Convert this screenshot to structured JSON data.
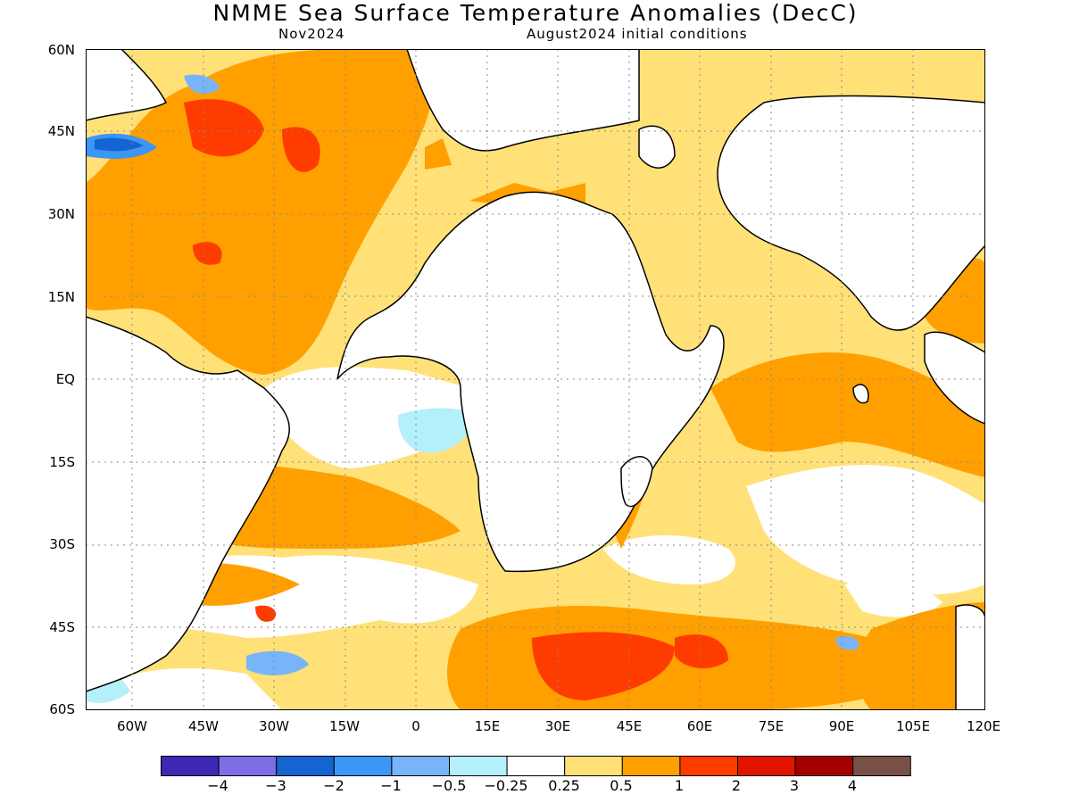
{
  "header": {
    "title": "NMME Sea Surface Temperature Anomalies (DecC)",
    "lead_month": "Nov2024",
    "initial_conditions": "August2024 initial conditions"
  },
  "axes": {
    "lat_labels": [
      "60N",
      "45N",
      "30N",
      "15N",
      "EQ",
      "15S",
      "30S",
      "45S",
      "60S"
    ],
    "lon_labels": [
      "60W",
      "45W",
      "30W",
      "15W",
      "0",
      "15E",
      "30E",
      "45E",
      "60E",
      "75E",
      "90E",
      "105E",
      "120E"
    ],
    "lon_range": [
      -70,
      120
    ],
    "lat_range": [
      -60,
      60
    ],
    "grid": "dotted"
  },
  "legend": {
    "labels": [
      "−4",
      "−3",
      "−2",
      "−1",
      "−0.5",
      "−0.25",
      "0.25",
      "0.5",
      "1",
      "2",
      "3",
      "4"
    ],
    "colors": [
      "#3c28b4",
      "#7d6ee6",
      "#1464d2",
      "#3c96f5",
      "#78b4fa",
      "#b4f0fa",
      "#ffffff",
      "#ffe178",
      "#ffa000",
      "#ff3c00",
      "#e11400",
      "#a50000",
      "#785046"
    ]
  },
  "colors": {
    "land": "#ffffff",
    "coast": "#000000",
    "grid": "#888888"
  }
}
